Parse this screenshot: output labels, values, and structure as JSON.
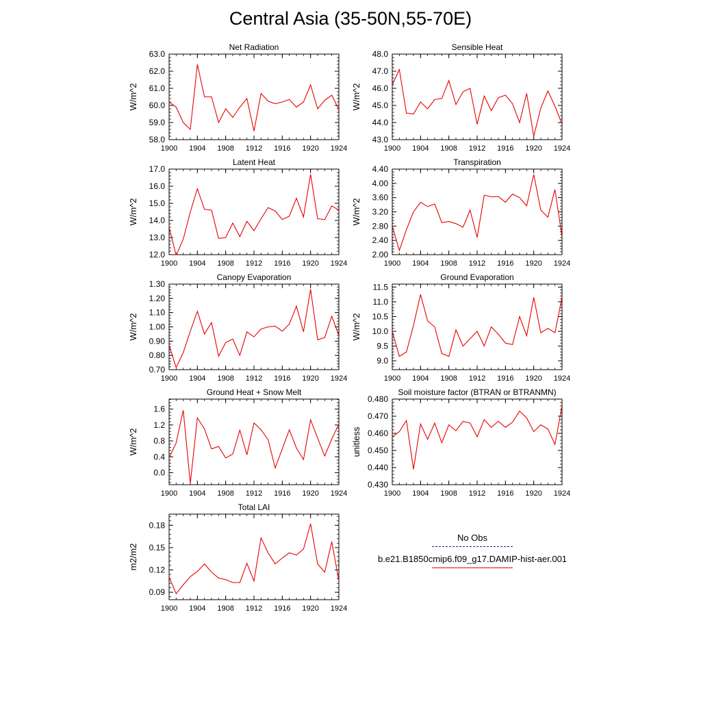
{
  "title": "Central Asia (35-50N,55-70E)",
  "legend": {
    "obs_label": "No Obs",
    "obs_color": "#1a1a99",
    "case_label": "b.e21.B1850cmip6.f09_g17.DAMIP-hist-aer.001",
    "case_color": "#e60000"
  },
  "chart_data": [
    {
      "type": "line",
      "title": "Net Radiation",
      "ylabel": "W/m^2",
      "xlim": [
        1900,
        1924
      ],
      "ylim": [
        58.0,
        63.0
      ],
      "xticks": [
        "1900",
        "1904",
        "1908",
        "1912",
        "1916",
        "1920",
        "1924"
      ],
      "yticks": [
        "58.0",
        "59.0",
        "60.0",
        "61.0",
        "62.0",
        "63.0"
      ],
      "x": [
        1900,
        1901,
        1902,
        1903,
        1904,
        1905,
        1906,
        1907,
        1908,
        1909,
        1910,
        1911,
        1912,
        1913,
        1914,
        1915,
        1916,
        1917,
        1918,
        1919,
        1920,
        1921,
        1922,
        1923,
        1924
      ],
      "series": [
        {
          "values": [
            60.2,
            59.9,
            59.0,
            58.6,
            62.4,
            60.5,
            60.5,
            59.0,
            59.8,
            59.3,
            59.9,
            60.4,
            58.5,
            60.7,
            60.25,
            60.1,
            60.2,
            60.35,
            59.9,
            60.2,
            61.2,
            59.8,
            60.3,
            60.6,
            59.75
          ]
        }
      ]
    },
    {
      "type": "line",
      "title": "Sensible Heat",
      "ylabel": "W/m^2",
      "xlim": [
        1900,
        1924
      ],
      "ylim": [
        43.0,
        48.0
      ],
      "xticks": [
        "1900",
        "1904",
        "1908",
        "1912",
        "1916",
        "1920",
        "1924"
      ],
      "yticks": [
        "43.0",
        "44.0",
        "45.0",
        "46.0",
        "47.0",
        "48.0"
      ],
      "x": [
        1900,
        1901,
        1902,
        1903,
        1904,
        1905,
        1906,
        1907,
        1908,
        1909,
        1910,
        1911,
        1912,
        1913,
        1914,
        1915,
        1916,
        1917,
        1918,
        1919,
        1920,
        1921,
        1922,
        1923,
        1924
      ],
      "series": [
        {
          "values": [
            46.2,
            47.1,
            44.55,
            44.5,
            45.2,
            44.8,
            45.35,
            45.4,
            46.45,
            45.05,
            45.8,
            46.0,
            43.9,
            45.55,
            44.7,
            45.45,
            45.6,
            45.1,
            44.0,
            45.7,
            43.2,
            44.85,
            45.85,
            44.95,
            43.9
          ]
        }
      ]
    },
    {
      "type": "line",
      "title": "Latent Heat",
      "ylabel": "W/m^2",
      "xlim": [
        1900,
        1924
      ],
      "ylim": [
        12.0,
        17.0
      ],
      "xticks": [
        "1900",
        "1904",
        "1908",
        "1912",
        "1916",
        "1920",
        "1924"
      ],
      "yticks": [
        "12.0",
        "13.0",
        "14.0",
        "15.0",
        "16.0",
        "17.0"
      ],
      "x": [
        1900,
        1901,
        1902,
        1903,
        1904,
        1905,
        1906,
        1907,
        1908,
        1909,
        1910,
        1911,
        1912,
        1913,
        1914,
        1915,
        1916,
        1917,
        1918,
        1919,
        1920,
        1921,
        1922,
        1923,
        1924
      ],
      "series": [
        {
          "values": [
            13.6,
            11.95,
            12.9,
            14.5,
            15.85,
            14.65,
            14.6,
            12.95,
            13.0,
            13.85,
            13.05,
            13.95,
            13.4,
            14.1,
            14.75,
            14.55,
            14.05,
            14.25,
            15.3,
            14.2,
            16.7,
            14.1,
            14.05,
            14.85,
            14.6
          ]
        }
      ]
    },
    {
      "type": "line",
      "title": "Transpiration",
      "ylabel": "W/m^2",
      "xlim": [
        1900,
        1924
      ],
      "ylim": [
        2.0,
        4.4
      ],
      "xticks": [
        "1900",
        "1904",
        "1908",
        "1912",
        "1916",
        "1920",
        "1924"
      ],
      "yticks": [
        "2.00",
        "2.40",
        "2.80",
        "3.20",
        "3.60",
        "4.00",
        "4.40"
      ],
      "x": [
        1900,
        1901,
        1902,
        1903,
        1904,
        1905,
        1906,
        1907,
        1908,
        1909,
        1910,
        1911,
        1912,
        1913,
        1914,
        1915,
        1916,
        1917,
        1918,
        1919,
        1920,
        1921,
        1922,
        1923,
        1924
      ],
      "series": [
        {
          "values": [
            2.8,
            2.12,
            2.7,
            3.2,
            3.47,
            3.35,
            3.42,
            2.9,
            2.93,
            2.87,
            2.77,
            3.25,
            2.48,
            3.67,
            3.62,
            3.63,
            3.47,
            3.7,
            3.6,
            3.37,
            4.25,
            3.25,
            3.05,
            3.83,
            2.5
          ]
        }
      ]
    },
    {
      "type": "line",
      "title": "Canopy Evaporation",
      "ylabel": "W/m^2",
      "xlim": [
        1900,
        1924
      ],
      "ylim": [
        0.7,
        1.3
      ],
      "xticks": [
        "1900",
        "1904",
        "1908",
        "1912",
        "1916",
        "1920",
        "1924"
      ],
      "yticks": [
        "0.70",
        "0.80",
        "0.90",
        "1.00",
        "1.10",
        "1.20",
        "1.30"
      ],
      "x": [
        1900,
        1901,
        1902,
        1903,
        1904,
        1905,
        1906,
        1907,
        1908,
        1909,
        1910,
        1911,
        1912,
        1913,
        1914,
        1915,
        1916,
        1917,
        1918,
        1919,
        1920,
        1921,
        1922,
        1923,
        1924
      ],
      "series": [
        {
          "values": [
            0.87,
            0.715,
            0.82,
            0.97,
            1.11,
            0.95,
            1.03,
            0.795,
            0.89,
            0.915,
            0.8,
            0.965,
            0.93,
            0.985,
            1.0,
            1.005,
            0.97,
            1.02,
            1.145,
            0.965,
            1.265,
            0.91,
            0.925,
            1.075,
            0.94
          ]
        }
      ]
    },
    {
      "type": "line",
      "title": "Ground Evaporation",
      "ylabel": "W/m^2",
      "xlim": [
        1900,
        1924
      ],
      "ylim": [
        8.7,
        11.6
      ],
      "xticks": [
        "1900",
        "1904",
        "1908",
        "1912",
        "1916",
        "1920",
        "1924"
      ],
      "yticks": [
        "9.0",
        "9.5",
        "10.0",
        "10.5",
        "11.0",
        "11.5"
      ],
      "x": [
        1900,
        1901,
        1902,
        1903,
        1904,
        1905,
        1906,
        1907,
        1908,
        1909,
        1910,
        1911,
        1912,
        1913,
        1914,
        1915,
        1916,
        1917,
        1918,
        1919,
        1920,
        1921,
        1922,
        1923,
        1924
      ],
      "series": [
        {
          "values": [
            10.0,
            9.15,
            9.3,
            10.2,
            11.25,
            10.35,
            10.15,
            9.25,
            9.15,
            10.05,
            9.5,
            9.75,
            10.0,
            9.5,
            10.15,
            9.9,
            9.6,
            9.55,
            10.5,
            9.85,
            11.15,
            9.95,
            10.1,
            9.95,
            11.15
          ]
        }
      ]
    },
    {
      "type": "line",
      "title": "Ground Heat + Snow Melt",
      "ylabel": "W/m^2",
      "xlim": [
        1900,
        1924
      ],
      "ylim": [
        -0.3,
        1.85
      ],
      "xticks": [
        "1900",
        "1904",
        "1908",
        "1912",
        "1916",
        "1920",
        "1924"
      ],
      "yticks": [
        "0.0",
        "0.4",
        "0.8",
        "1.2",
        "1.6"
      ],
      "x": [
        1900,
        1901,
        1902,
        1903,
        1904,
        1905,
        1906,
        1907,
        1908,
        1909,
        1910,
        1911,
        1912,
        1913,
        1914,
        1915,
        1916,
        1917,
        1918,
        1919,
        1920,
        1921,
        1922,
        1923,
        1924
      ],
      "series": [
        {
          "values": [
            0.38,
            0.75,
            1.57,
            -0.27,
            1.38,
            1.1,
            0.6,
            0.66,
            0.37,
            0.47,
            1.07,
            0.45,
            1.25,
            1.08,
            0.83,
            0.12,
            0.6,
            1.08,
            0.62,
            0.33,
            1.33,
            0.87,
            0.42,
            0.85,
            1.22
          ]
        }
      ]
    },
    {
      "type": "line",
      "title": "Soil moisture factor (BTRAN or BTRANMN)",
      "ylabel": "unitless",
      "xlim": [
        1900,
        1924
      ],
      "ylim": [
        0.43,
        0.48
      ],
      "xticks": [
        "1900",
        "1904",
        "1908",
        "1912",
        "1916",
        "1920",
        "1924"
      ],
      "yticks": [
        "0.430",
        "0.440",
        "0.450",
        "0.460",
        "0.470",
        "0.480"
      ],
      "x": [
        1900,
        1901,
        1902,
        1903,
        1904,
        1905,
        1906,
        1907,
        1908,
        1909,
        1910,
        1911,
        1912,
        1913,
        1914,
        1915,
        1916,
        1917,
        1918,
        1919,
        1920,
        1921,
        1922,
        1923,
        1924
      ],
      "series": [
        {
          "values": [
            0.458,
            0.461,
            0.4675,
            0.439,
            0.4655,
            0.4565,
            0.466,
            0.4545,
            0.465,
            0.4615,
            0.467,
            0.466,
            0.458,
            0.468,
            0.4635,
            0.467,
            0.4635,
            0.4665,
            0.473,
            0.469,
            0.461,
            0.465,
            0.4625,
            0.4535,
            0.476
          ]
        }
      ]
    },
    {
      "type": "line",
      "title": "Total LAI",
      "ylabel": "m2/m2",
      "xlim": [
        1900,
        1924
      ],
      "ylim": [
        0.08,
        0.195
      ],
      "xticks": [
        "1900",
        "1904",
        "1908",
        "1912",
        "1916",
        "1920",
        "1924"
      ],
      "yticks": [
        "0.09",
        "0.12",
        "0.15",
        "0.18"
      ],
      "x": [
        1900,
        1901,
        1902,
        1903,
        1904,
        1905,
        1906,
        1907,
        1908,
        1909,
        1910,
        1911,
        1912,
        1913,
        1914,
        1915,
        1916,
        1917,
        1918,
        1919,
        1920,
        1921,
        1922,
        1923,
        1924
      ],
      "series": [
        {
          "values": [
            0.11,
            0.088,
            0.1,
            0.111,
            0.118,
            0.128,
            0.117,
            0.109,
            0.107,
            0.103,
            0.103,
            0.129,
            0.105,
            0.163,
            0.143,
            0.128,
            0.136,
            0.143,
            0.14,
            0.148,
            0.182,
            0.128,
            0.117,
            0.158,
            0.105
          ]
        }
      ]
    }
  ]
}
